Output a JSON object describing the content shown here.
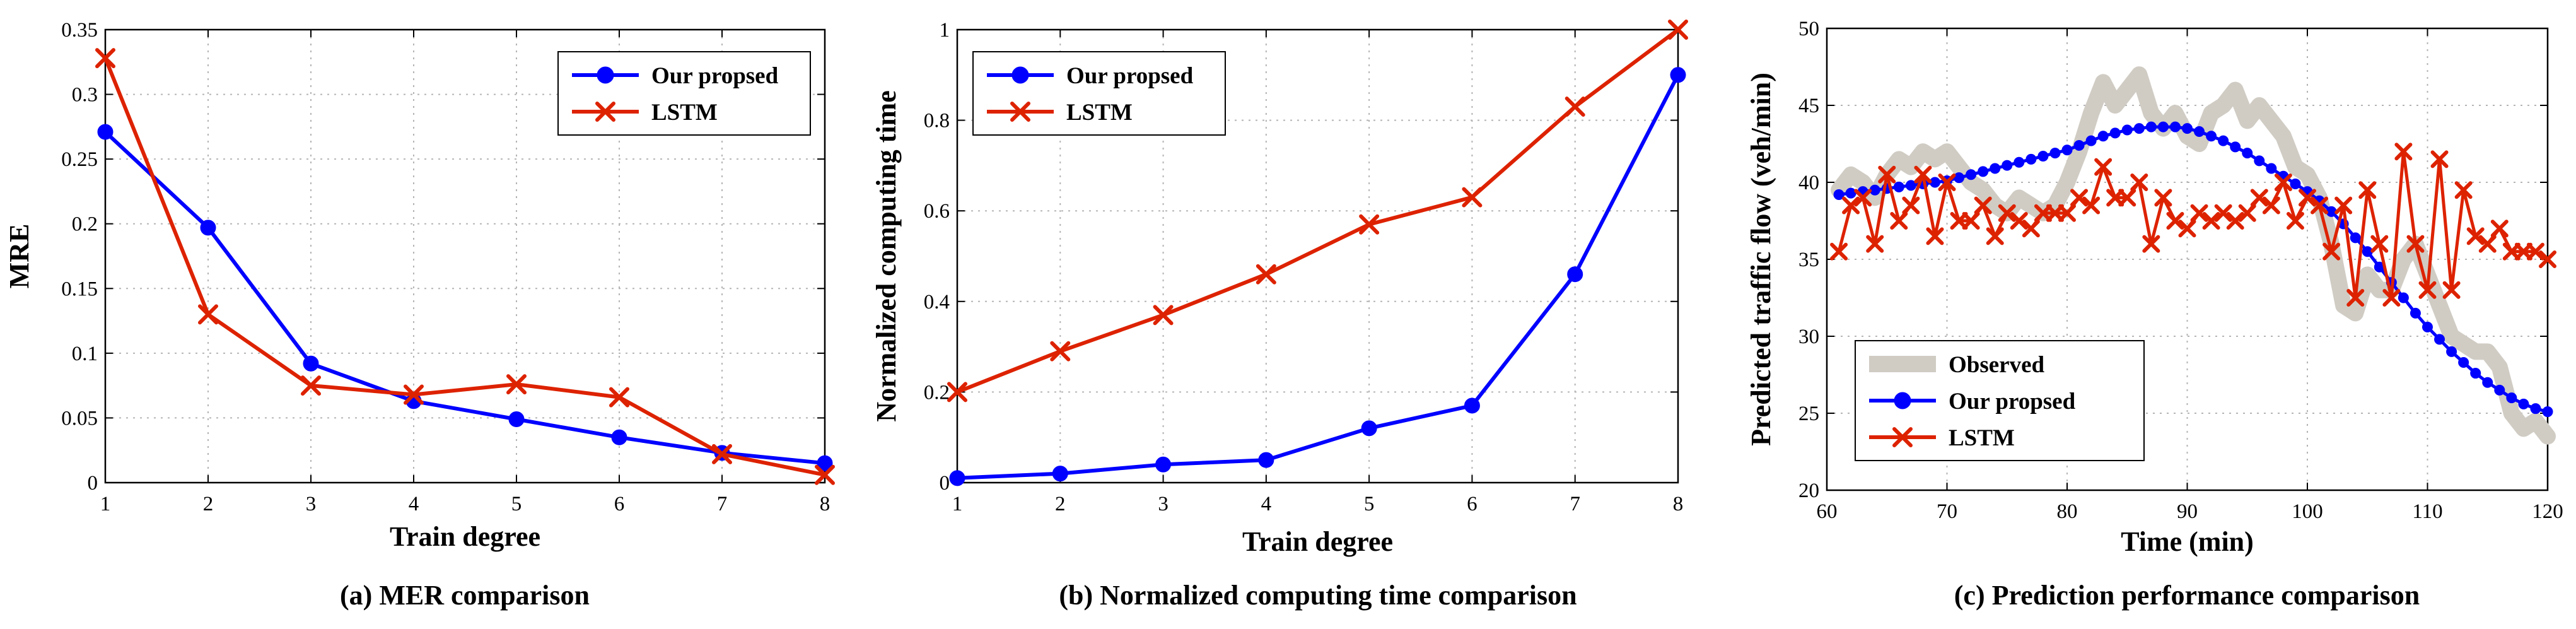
{
  "chart_data": [
    {
      "type": "line",
      "caption": "(a) MER comparison",
      "xlabel": "Train degree",
      "ylabel": "MRE",
      "xlim": [
        1,
        8
      ],
      "ylim": [
        0,
        0.35
      ],
      "xticks": [
        "1",
        "2",
        "3",
        "4",
        "5",
        "6",
        "7",
        "8"
      ],
      "yticks": [
        "0",
        "0.05",
        "0.1",
        "0.15",
        "0.2",
        "0.25",
        "0.3",
        "0.35"
      ],
      "grid": true,
      "legend": "top-right",
      "x": [
        1,
        2,
        3,
        4,
        5,
        6,
        7,
        8
      ],
      "series": [
        {
          "name": "Our propsed",
          "color": "#0000ff",
          "marker": "circle",
          "values": [
            0.271,
            0.197,
            0.092,
            0.063,
            0.049,
            0.035,
            0.023,
            0.015
          ]
        },
        {
          "name": "LSTM",
          "color": "#dd2200",
          "marker": "x",
          "values": [
            0.328,
            0.13,
            0.075,
            0.068,
            0.076,
            0.066,
            0.022,
            0.006
          ]
        }
      ]
    },
    {
      "type": "line",
      "caption": "(b) Normalized computing time comparison",
      "xlabel": "Train degree",
      "ylabel": "Normalized computing time",
      "xlim": [
        1,
        8
      ],
      "ylim": [
        0,
        1
      ],
      "xticks": [
        "1",
        "2",
        "3",
        "4",
        "5",
        "6",
        "7",
        "8"
      ],
      "yticks": [
        "0",
        "0.2",
        "0.4",
        "0.6",
        "0.8",
        "1"
      ],
      "grid": true,
      "legend": "top-left",
      "x": [
        1,
        2,
        3,
        4,
        5,
        6,
        7,
        8
      ],
      "series": [
        {
          "name": "Our propsed",
          "color": "#0000ff",
          "marker": "circle",
          "values": [
            0.01,
            0.02,
            0.04,
            0.05,
            0.12,
            0.17,
            0.46,
            0.9
          ]
        },
        {
          "name": "LSTM",
          "color": "#dd2200",
          "marker": "x",
          "values": [
            0.2,
            0.29,
            0.37,
            0.46,
            0.57,
            0.63,
            0.83,
            1.0
          ]
        }
      ]
    },
    {
      "type": "line",
      "caption": "(c) Prediction performance comparison",
      "xlabel": "Time (min)",
      "ylabel": "Predicted traffic flow (veh/min)",
      "xlim": [
        60,
        120
      ],
      "ylim": [
        20,
        50
      ],
      "xticks": [
        "60",
        "70",
        "80",
        "90",
        "100",
        "110",
        "120"
      ],
      "yticks": [
        "20",
        "25",
        "30",
        "35",
        "40",
        "45",
        "50"
      ],
      "grid": true,
      "legend": "bottom-left",
      "x": [
        61,
        62,
        63,
        64,
        65,
        66,
        67,
        68,
        69,
        70,
        71,
        72,
        73,
        74,
        75,
        76,
        77,
        78,
        79,
        80,
        81,
        82,
        83,
        84,
        85,
        86,
        87,
        88,
        89,
        90,
        91,
        92,
        93,
        94,
        95,
        96,
        97,
        98,
        99,
        100,
        101,
        102,
        103,
        104,
        105,
        106,
        107,
        108,
        109,
        110,
        111,
        112,
        113,
        114,
        115,
        116,
        117,
        118,
        119,
        120
      ],
      "series": [
        {
          "name": "Observed",
          "color": "#d0ccc4",
          "marker": "none",
          "values": [
            39.5,
            40.5,
            40.0,
            39.0,
            40.5,
            41.5,
            41.0,
            42.0,
            41.5,
            42.0,
            41.0,
            40.0,
            39.5,
            38.5,
            38.0,
            39.0,
            38.5,
            38.0,
            38.5,
            40.0,
            42.0,
            44.5,
            46.5,
            45.0,
            46.0,
            47.0,
            44.5,
            43.5,
            44.5,
            43.0,
            42.5,
            44.5,
            45.0,
            46.0,
            44.0,
            45.0,
            44.0,
            43.0,
            41.0,
            40.5,
            39.0,
            36.0,
            32.0,
            31.5,
            34.0,
            33.0,
            33.0,
            35.0,
            36.0,
            34.0,
            32.0,
            30.0,
            29.5,
            29.0,
            29.0,
            28.0,
            25.0,
            24.0,
            24.5,
            23.5
          ]
        },
        {
          "name": "Our propsed",
          "color": "#0000ff",
          "marker": "circle",
          "values": [
            39.2,
            39.3,
            39.4,
            39.5,
            39.6,
            39.7,
            39.8,
            39.9,
            40.0,
            40.1,
            40.3,
            40.5,
            40.7,
            40.9,
            41.1,
            41.3,
            41.5,
            41.7,
            41.9,
            42.1,
            42.4,
            42.7,
            43.0,
            43.2,
            43.4,
            43.5,
            43.6,
            43.6,
            43.6,
            43.5,
            43.3,
            43.0,
            42.7,
            42.3,
            41.9,
            41.4,
            40.9,
            40.4,
            39.9,
            39.4,
            38.8,
            38.1,
            37.3,
            36.4,
            35.5,
            34.5,
            33.5,
            32.5,
            31.5,
            30.6,
            29.8,
            29.0,
            28.3,
            27.6,
            27.0,
            26.5,
            26.0,
            25.6,
            25.3,
            25.1
          ]
        },
        {
          "name": "LSTM",
          "color": "#dd2200",
          "marker": "x",
          "values": [
            35.5,
            38.5,
            39.0,
            36.0,
            40.5,
            37.5,
            38.5,
            40.5,
            36.5,
            40.0,
            37.5,
            37.5,
            38.5,
            36.5,
            38.0,
            37.5,
            37.0,
            38.0,
            38.0,
            38.0,
            39.0,
            38.5,
            41.0,
            39.0,
            39.0,
            40.0,
            36.0,
            39.0,
            37.5,
            37.0,
            38.0,
            37.5,
            38.0,
            37.5,
            38.0,
            39.0,
            38.5,
            40.0,
            37.5,
            39.0,
            38.5,
            35.5,
            38.5,
            32.5,
            39.5,
            36.0,
            32.5,
            42.0,
            36.0,
            33.0,
            41.5,
            33.0,
            39.5,
            36.5,
            36.0,
            37.0,
            35.5,
            35.5,
            35.5,
            35.0
          ]
        }
      ]
    }
  ]
}
